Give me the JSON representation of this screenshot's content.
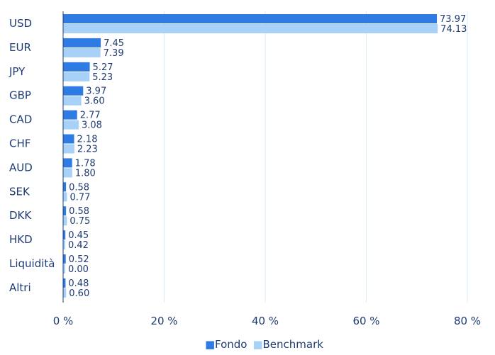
{
  "chart_data": {
    "type": "bar",
    "orientation": "horizontal",
    "categories": [
      "USD",
      "EUR",
      "JPY",
      "GBP",
      "CAD",
      "CHF",
      "AUD",
      "SEK",
      "DKK",
      "HKD",
      "Liquidità",
      "Altri"
    ],
    "series": [
      {
        "name": "Fondo",
        "color": "#2e7be4",
        "values": [
          73.97,
          7.45,
          5.27,
          3.97,
          2.77,
          2.18,
          1.78,
          0.58,
          0.58,
          0.45,
          0.52,
          0.48
        ],
        "labels": [
          "73.97",
          "7.45",
          "5.27",
          "3.97",
          "2.77",
          "2.18",
          "1.78",
          "0.58",
          "0.58",
          "0.45",
          "0.52",
          "0.48"
        ]
      },
      {
        "name": "Benchmark",
        "color": "#a7d1f7",
        "values": [
          74.13,
          7.39,
          5.23,
          3.6,
          3.08,
          2.23,
          1.8,
          0.77,
          0.75,
          0.42,
          0.0,
          0.6
        ],
        "labels": [
          "74.13",
          "7.39",
          "5.23",
          "3.60",
          "3.08",
          "2.23",
          "1.80",
          "0.77",
          "0.75",
          "0.42",
          "0.00",
          "0.60"
        ]
      }
    ],
    "xlim": [
      0,
      80
    ],
    "x_ticks": [
      0,
      20,
      40,
      60,
      80
    ],
    "x_tick_labels": [
      "0 %",
      "20 %",
      "40 %",
      "60 %",
      "80 %"
    ],
    "grid": true,
    "legend_position": "bottom-center",
    "legend_marker": "■",
    "title": "",
    "xlabel": "",
    "ylabel": ""
  }
}
